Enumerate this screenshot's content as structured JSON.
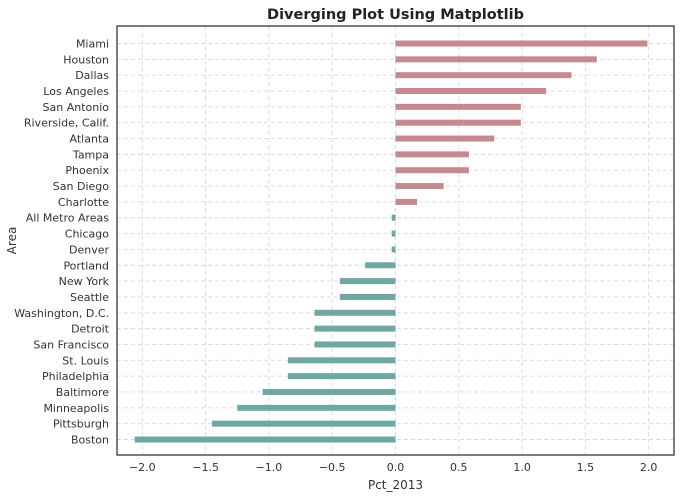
{
  "chart_data": {
    "type": "bar",
    "orientation": "horizontal",
    "title": "Diverging Plot Using Matplotlib",
    "xlabel": "Pct_2013",
    "ylabel": "Area",
    "xlim": [
      -2.2,
      2.2
    ],
    "xticks": [
      -2.0,
      -1.5,
      -1.0,
      -0.5,
      0.0,
      0.5,
      1.0,
      1.5,
      2.0
    ],
    "xtick_labels": [
      "−2.0",
      "−1.5",
      "−1.0",
      "−0.5",
      "0.0",
      "0.5",
      "1.0",
      "1.5",
      "2.0"
    ],
    "grid": true,
    "colors": {
      "positive": "#c48a8d",
      "negative": "#6fa8a2"
    },
    "categories": [
      "Miami",
      "Houston",
      "Dallas",
      "Los Angeles",
      "San Antonio",
      "Riverside, Calif.",
      "Atlanta",
      "Tampa",
      "Phoenix",
      "San Diego",
      "Charlotte",
      "All Metro Areas",
      "Chicago",
      "Denver",
      "Portland",
      "New York",
      "Seattle",
      "Washington, D.C.",
      "Detroit",
      "San Francisco",
      "St. Louis",
      "Philadelphia",
      "Baltimore",
      "Minneapolis",
      "Pittsburgh",
      "Boston"
    ],
    "values": [
      1.99,
      1.59,
      1.39,
      1.19,
      0.99,
      0.99,
      0.78,
      0.58,
      0.58,
      0.38,
      0.17,
      -0.03,
      -0.03,
      -0.03,
      -0.24,
      -0.44,
      -0.44,
      -0.64,
      -0.64,
      -0.64,
      -0.85,
      -0.85,
      -1.05,
      -1.25,
      -1.45,
      -2.06
    ]
  }
}
